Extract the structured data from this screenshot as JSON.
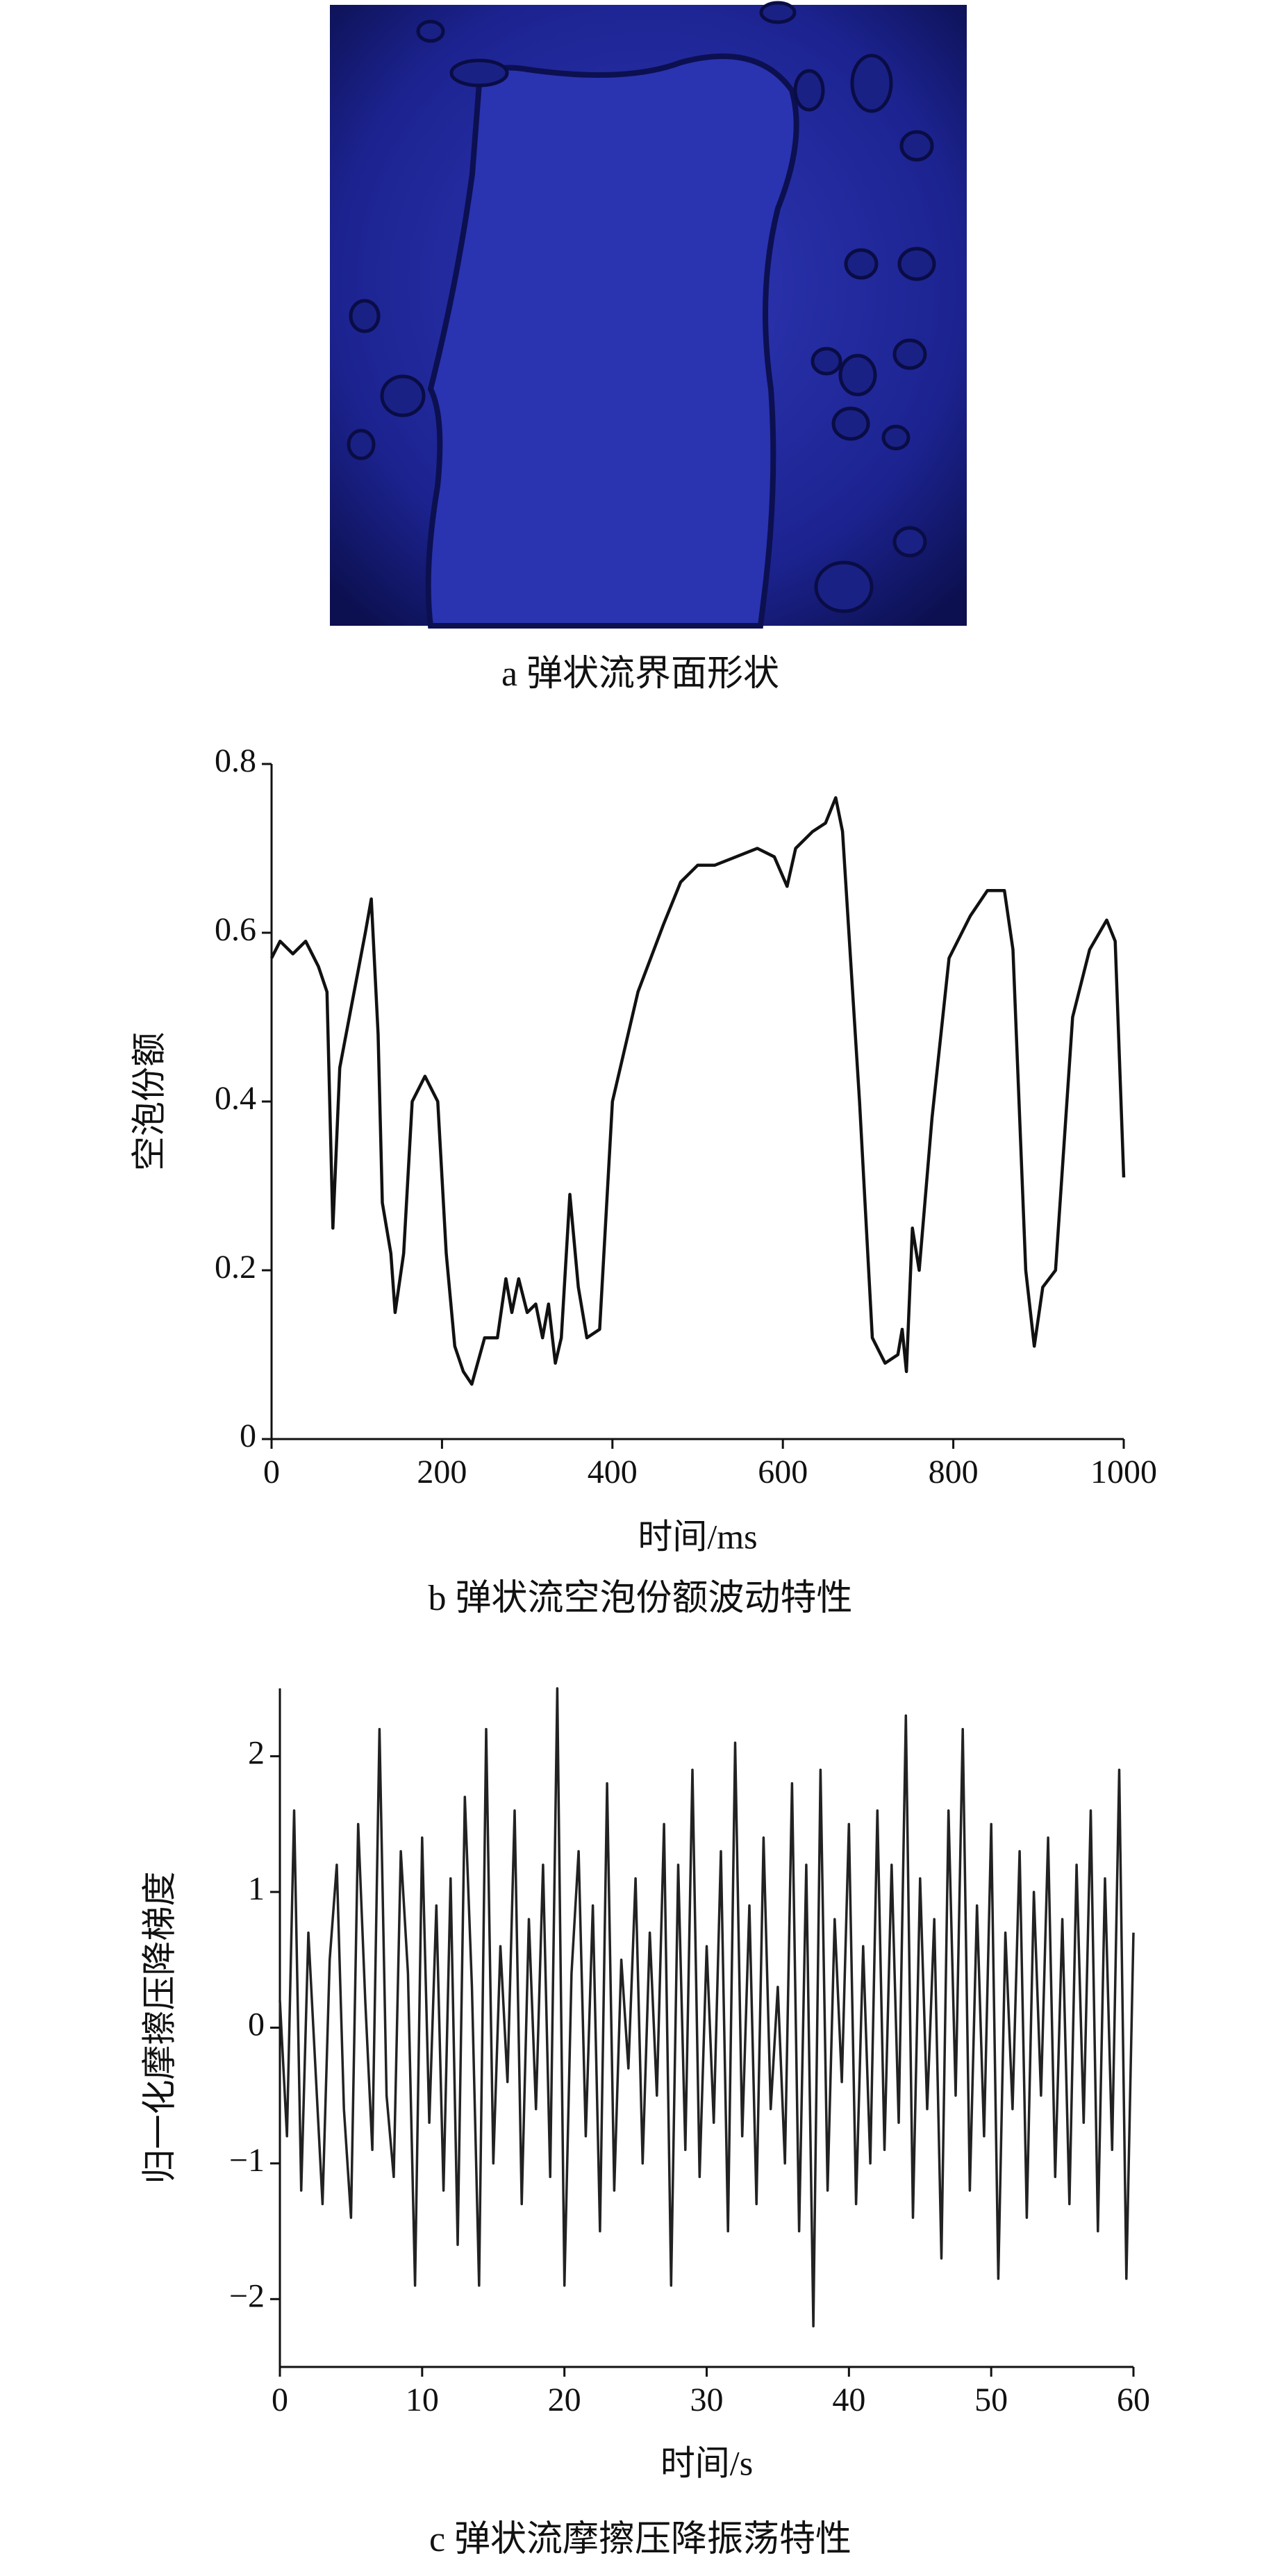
{
  "photo": {
    "caption": "a 弹状流界面形状"
  },
  "chart_data": [
    {
      "type": "line",
      "caption": "b 弹状流空泡份额波动特性",
      "xlabel": "时间/ms",
      "ylabel": "空泡份额",
      "color": "#111111",
      "x": [
        0,
        10,
        25,
        40,
        55,
        65,
        72,
        80,
        95,
        110,
        117,
        125,
        130,
        140,
        145,
        155,
        165,
        180,
        195,
        205,
        215,
        225,
        235,
        250,
        265,
        275,
        282,
        290,
        300,
        310,
        318,
        325,
        333,
        340,
        350,
        360,
        370,
        385,
        400,
        430,
        460,
        480,
        500,
        520,
        545,
        570,
        590,
        605,
        615,
        635,
        650,
        662,
        670,
        690,
        705,
        720,
        735,
        740,
        745,
        752,
        760,
        775,
        795,
        820,
        840,
        860,
        870,
        885,
        895,
        905,
        920,
        940,
        960,
        980,
        990,
        1000
      ],
      "values": [
        0.57,
        0.59,
        0.575,
        0.59,
        0.56,
        0.53,
        0.25,
        0.44,
        0.52,
        0.6,
        0.64,
        0.48,
        0.28,
        0.22,
        0.15,
        0.22,
        0.4,
        0.43,
        0.4,
        0.22,
        0.11,
        0.08,
        0.065,
        0.12,
        0.12,
        0.19,
        0.15,
        0.19,
        0.15,
        0.16,
        0.12,
        0.16,
        0.09,
        0.12,
        0.29,
        0.18,
        0.12,
        0.13,
        0.4,
        0.53,
        0.61,
        0.66,
        0.68,
        0.68,
        0.69,
        0.7,
        0.69,
        0.655,
        0.7,
        0.72,
        0.73,
        0.76,
        0.72,
        0.4,
        0.12,
        0.09,
        0.1,
        0.13,
        0.08,
        0.25,
        0.2,
        0.38,
        0.57,
        0.62,
        0.65,
        0.65,
        0.58,
        0.2,
        0.11,
        0.18,
        0.2,
        0.5,
        0.58,
        0.615,
        0.59,
        0.31
      ],
      "xlim": [
        0,
        1000
      ],
      "xticks": [
        0,
        200,
        400,
        600,
        800,
        1000
      ],
      "ylim": [
        0,
        0.8
      ],
      "yticks": [
        0,
        0.2,
        0.4,
        0.6,
        0.8
      ]
    },
    {
      "type": "line",
      "caption": "c 弹状流摩擦压降振荡特性",
      "xlabel": "时间/s",
      "ylabel": "归一化摩擦压降梯度",
      "color": "#222222",
      "x": [
        0,
        0.5,
        1,
        1.5,
        2,
        2.5,
        3,
        3.5,
        4,
        4.5,
        5,
        5.5,
        6,
        6.5,
        7,
        7.5,
        8,
        8.5,
        9,
        9.5,
        10,
        10.5,
        11,
        11.5,
        12,
        12.5,
        13,
        13.5,
        14,
        14.5,
        15,
        15.5,
        16,
        16.5,
        17,
        17.5,
        18,
        18.5,
        19,
        19.5,
        20,
        20.5,
        21,
        21.5,
        22,
        22.5,
        23,
        23.5,
        24,
        24.5,
        25,
        25.5,
        26,
        26.5,
        27,
        27.5,
        28,
        28.5,
        29,
        29.5,
        30,
        30.5,
        31,
        31.5,
        32,
        32.5,
        33,
        33.5,
        34,
        34.5,
        35,
        35.5,
        36,
        36.5,
        37,
        37.5,
        38,
        38.5,
        39,
        39.5,
        40,
        40.5,
        41,
        41.5,
        42,
        42.5,
        43,
        43.5,
        44,
        44.5,
        45,
        45.5,
        46,
        46.5,
        47,
        47.5,
        48,
        48.5,
        49,
        49.5,
        50,
        50.5,
        51,
        51.5,
        52,
        52.5,
        53,
        53.5,
        54,
        54.5,
        55,
        55.5,
        56,
        56.5,
        57,
        57.5,
        58,
        58.5,
        59,
        59.5,
        60
      ],
      "values": [
        0.2,
        -0.8,
        1.6,
        -1.2,
        0.7,
        -0.3,
        -1.3,
        0.5,
        1.2,
        -0.6,
        -1.4,
        1.5,
        0.2,
        -0.9,
        2.2,
        -0.5,
        -1.1,
        1.3,
        0.4,
        -1.9,
        1.4,
        -0.7,
        0.9,
        -1.2,
        1.1,
        -1.6,
        1.7,
        0.3,
        -1.9,
        2.2,
        -1.0,
        0.6,
        -0.4,
        1.6,
        -1.3,
        0.8,
        -0.6,
        1.2,
        -1.1,
        2.5,
        -1.9,
        0.4,
        1.3,
        -0.8,
        0.9,
        -1.5,
        1.8,
        -1.2,
        0.5,
        -0.3,
        1.1,
        -1.0,
        0.7,
        -0.5,
        1.5,
        -1.9,
        1.2,
        -0.9,
        1.9,
        -1.1,
        0.6,
        -0.7,
        1.3,
        -1.5,
        2.1,
        -0.8,
        0.9,
        -1.3,
        1.4,
        -0.6,
        0.3,
        -1.0,
        1.8,
        -1.5,
        1.2,
        -2.2,
        1.9,
        -1.2,
        0.8,
        -0.4,
        1.5,
        -1.3,
        0.6,
        -1.0,
        1.6,
        -0.9,
        1.2,
        -0.7,
        2.3,
        -1.4,
        1.1,
        -0.6,
        0.8,
        -1.7,
        1.6,
        -0.5,
        2.2,
        -1.2,
        0.9,
        -0.8,
        1.5,
        -1.85,
        0.7,
        -0.6,
        1.3,
        -1.4,
        1.0,
        -0.5,
        1.4,
        -1.1,
        0.8,
        -1.3,
        1.2,
        -0.7,
        1.6,
        -1.5,
        1.1,
        -0.9,
        1.9,
        -1.85,
        0.7
      ],
      "xlim": [
        0,
        60
      ],
      "xticks": [
        0,
        10,
        20,
        30,
        40,
        50,
        60
      ],
      "ylim": [
        -2.5,
        2.5
      ],
      "yticks": [
        {
          "value": -2,
          "label": "−2"
        },
        {
          "value": -1,
          "label": "−1"
        },
        0,
        1,
        2
      ]
    }
  ]
}
